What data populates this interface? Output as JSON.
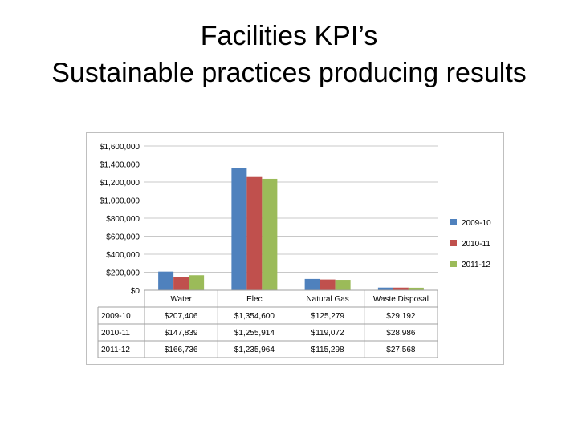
{
  "slide": {
    "title_line1": "Facilities KPI’s",
    "title_line2": "Sustainable practices producing results"
  },
  "chart_data": {
    "type": "bar",
    "title": "",
    "xlabel": "",
    "ylabel": "",
    "ylim": [
      0,
      1600000
    ],
    "y_ticks": [
      "$0",
      "$200,000",
      "$400,000",
      "$600,000",
      "$800,000",
      "$1,000,000",
      "$1,200,000",
      "$1,400,000",
      "$1,600,000"
    ],
    "grid": true,
    "legend_position": "right",
    "categories": [
      "Water",
      "Elec",
      "Natural Gas",
      "Waste Disposal"
    ],
    "series": [
      {
        "name": "2009-10",
        "color": "#4f81bd",
        "values": [
          207406,
          1354600,
          125279,
          29192
        ],
        "labels": [
          "$207,406",
          "$1,354,600",
          "$125,279",
          "$29,192"
        ]
      },
      {
        "name": "2010-11",
        "color": "#c0504d",
        "values": [
          147839,
          1255914,
          119072,
          28986
        ],
        "labels": [
          "$147,839",
          "$1,255,914",
          "$119,072",
          "$28,986"
        ]
      },
      {
        "name": "2011-12",
        "color": "#9bbb59",
        "values": [
          166736,
          1235964,
          115298,
          27568
        ],
        "labels": [
          "$166,736",
          "$1,235,964",
          "$115,298",
          "$27,568"
        ]
      }
    ],
    "data_table": true
  }
}
